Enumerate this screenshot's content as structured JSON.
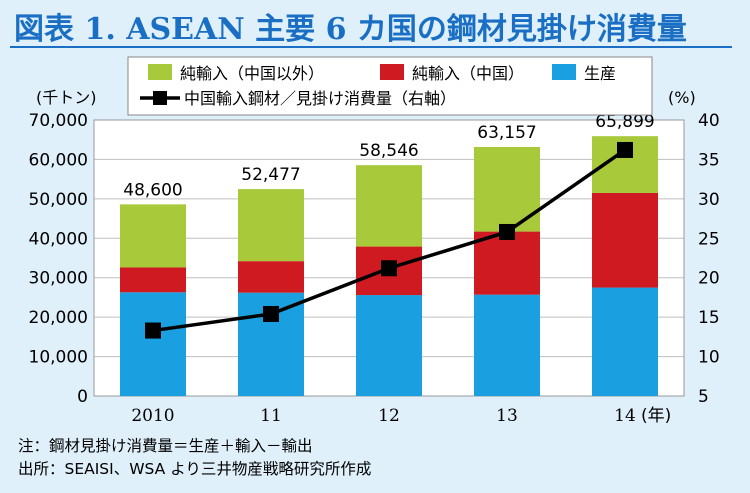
{
  "title": "図表 1. ASEAN 主要 6 カ国の鋼材見掛け消費量",
  "notes": {
    "note": "注：鋼材見掛け消費量＝生産＋輸入－輸出",
    "source": "出所：SEAISI、WSA より三井物産戦略研究所作成"
  },
  "colors": {
    "import_other": "#a8c93a",
    "import_china": "#cf1a22",
    "production": "#1a9fe0",
    "line": "#000000",
    "grid": "#bfbfbf",
    "background": "#dff0fa"
  },
  "chart_data": {
    "type": "bar",
    "stacked": true,
    "categories": [
      "2010",
      "11",
      "12",
      "13",
      "14"
    ],
    "x_unit": "(年)",
    "y_left": {
      "unit": "(千トン)",
      "lim": [
        0,
        70000
      ],
      "ticks": [
        "0",
        "10,000",
        "20,000",
        "30,000",
        "40,000",
        "50,000",
        "60,000",
        "70,000"
      ]
    },
    "y_right": {
      "unit": "(%)",
      "lim": [
        5,
        40
      ],
      "ticks": [
        "5",
        "10",
        "15",
        "20",
        "25",
        "30",
        "35",
        "40"
      ]
    },
    "grid": true,
    "legend_placement": "top",
    "series": [
      {
        "name": "生産",
        "values": [
          26300,
          26200,
          25600,
          25700,
          27500
        ],
        "color_key": "production"
      },
      {
        "name": "純輸入（中国）",
        "values": [
          6300,
          8000,
          12300,
          16000,
          24000
        ],
        "color_key": "import_china"
      },
      {
        "name": "純輸入（中国以外）",
        "values": [
          16000,
          18277,
          20646,
          21457,
          14399
        ],
        "color_key": "import_other"
      }
    ],
    "totals": [
      "48,600",
      "52,477",
      "58,546",
      "63,157",
      "65,899"
    ],
    "line_series": {
      "name": "中国輸入鋼材／見掛け消費量（右軸）",
      "values": [
        13.3,
        15.4,
        21.2,
        25.8,
        36.2
      ]
    },
    "legend": [
      {
        "label": "純輸入（中国以外）",
        "color_key": "import_other",
        "kind": "box"
      },
      {
        "label": "純輸入（中国）",
        "color_key": "import_china",
        "kind": "box"
      },
      {
        "label": "生産",
        "color_key": "production",
        "kind": "box"
      },
      {
        "label": "中国輸入鋼材／見掛け消費量（右軸）",
        "color_key": "line",
        "kind": "line"
      }
    ]
  }
}
